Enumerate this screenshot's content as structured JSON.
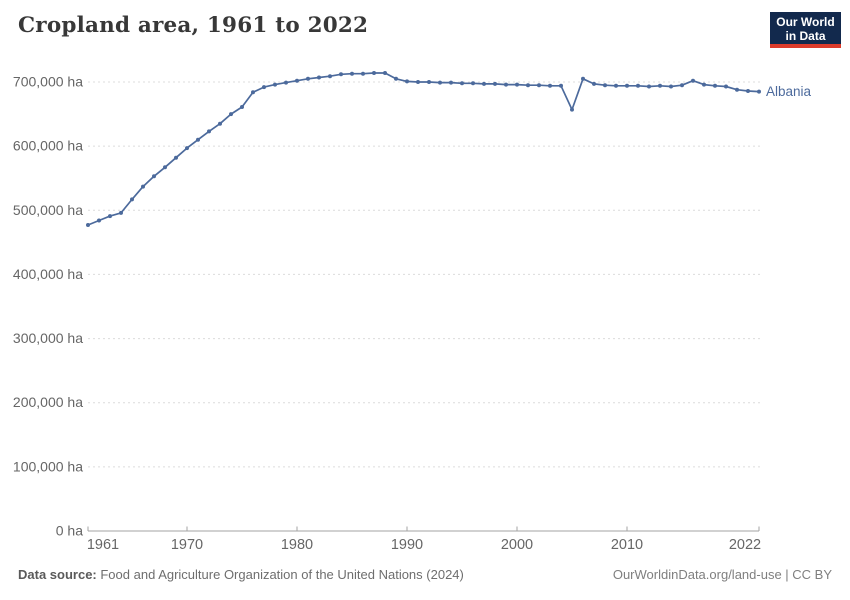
{
  "header": {
    "title": "Cropland area, 1961 to 2022",
    "logo_line1": "Our World",
    "logo_line2": "in Data"
  },
  "chart_data": {
    "type": "line",
    "title": "Cropland area, 1961 to 2022",
    "series_label": "Albania",
    "unit": "ha",
    "line_color": "#4C6A9C",
    "grid": "horizontal-dashed",
    "legend_position": "right-of-line-end",
    "xlim": [
      1961,
      2022
    ],
    "ylim": [
      0,
      700000
    ],
    "x": [
      1961,
      1962,
      1963,
      1964,
      1965,
      1966,
      1967,
      1968,
      1969,
      1970,
      1971,
      1972,
      1973,
      1974,
      1975,
      1976,
      1977,
      1978,
      1979,
      1980,
      1981,
      1982,
      1983,
      1984,
      1985,
      1986,
      1987,
      1988,
      1989,
      1990,
      1991,
      1992,
      1993,
      1994,
      1995,
      1996,
      1997,
      1998,
      1999,
      2000,
      2001,
      2002,
      2003,
      2004,
      2005,
      2006,
      2007,
      2008,
      2009,
      2010,
      2011,
      2012,
      2013,
      2014,
      2015,
      2016,
      2017,
      2018,
      2019,
      2020,
      2021,
      2022
    ],
    "values": [
      477000,
      484000,
      491000,
      496000,
      517000,
      537000,
      553000,
      567000,
      582000,
      597000,
      610000,
      623000,
      635000,
      650000,
      661000,
      684000,
      692000,
      696000,
      699000,
      702000,
      705000,
      707000,
      709000,
      712000,
      713000,
      713000,
      714000,
      714000,
      705000,
      701000,
      700000,
      700000,
      699000,
      699000,
      698000,
      698000,
      697000,
      697000,
      696000,
      696000,
      695000,
      695000,
      694000,
      694000,
      657000,
      705000,
      697000,
      695000,
      694000,
      694000,
      694000,
      693000,
      694000,
      693000,
      695000,
      702000,
      696000,
      694000,
      693000,
      688000,
      686000,
      685000
    ],
    "y_ticks": [
      {
        "value": 0,
        "label": "0 ha"
      },
      {
        "value": 100000,
        "label": "100,000 ha"
      },
      {
        "value": 200000,
        "label": "200,000 ha"
      },
      {
        "value": 300000,
        "label": "300,000 ha"
      },
      {
        "value": 400000,
        "label": "400,000 ha"
      },
      {
        "value": 500000,
        "label": "500,000 ha"
      },
      {
        "value": 600000,
        "label": "600,000 ha"
      },
      {
        "value": 700000,
        "label": "700,000 ha"
      }
    ],
    "x_ticks": [
      {
        "value": 1961,
        "label": "1961"
      },
      {
        "value": 1970,
        "label": "1970"
      },
      {
        "value": 1980,
        "label": "1980"
      },
      {
        "value": 1990,
        "label": "1990"
      },
      {
        "value": 2000,
        "label": "2000"
      },
      {
        "value": 2010,
        "label": "2010"
      },
      {
        "value": 2022,
        "label": "2022"
      }
    ]
  },
  "footer": {
    "datasource_label": "Data source:",
    "datasource_text": " Food and Agriculture Organization of the United Nations (2024)",
    "link_text": "OurWorldinData.org/land-use | CC BY"
  }
}
